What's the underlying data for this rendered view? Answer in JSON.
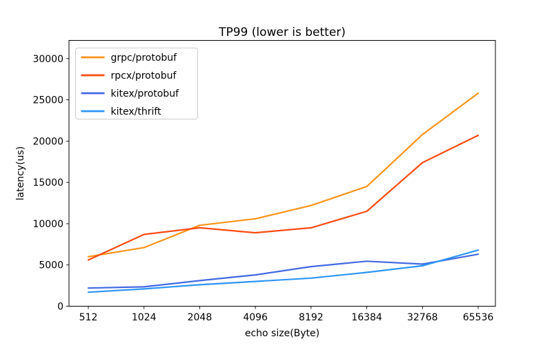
{
  "chart_data": {
    "type": "line",
    "title": "TP99 (lower is better)",
    "xlabel": "echo size(Byte)",
    "ylabel": "latency(us)",
    "categories": [
      "512",
      "1024",
      "2048",
      "4096",
      "8192",
      "16384",
      "32768",
      "65536"
    ],
    "series": [
      {
        "name": "grpc/protobuf",
        "color": "#FB9319",
        "values": [
          6000,
          7100,
          9800,
          10600,
          12200,
          14500,
          20800,
          25800
        ]
      },
      {
        "name": "rpcx/protobuf",
        "color": "#FA4B11",
        "values": [
          5600,
          8700,
          9500,
          8900,
          9500,
          11500,
          17400,
          20700
        ]
      },
      {
        "name": "kitex/protobuf",
        "color": "#4169E1",
        "values": [
          2200,
          2350,
          3100,
          3800,
          4800,
          5450,
          5100,
          6300
        ]
      },
      {
        "name": "kitex/thrift",
        "color": "#2E95F5",
        "values": [
          1700,
          2100,
          2600,
          3000,
          3400,
          4100,
          4900,
          6800
        ]
      }
    ],
    "yticks": [
      0,
      5000,
      10000,
      15000,
      20000,
      25000,
      30000
    ],
    "ylim": [
      0,
      32200
    ],
    "grid": false,
    "legend_position": "upper left",
    "axis_color": "#000000",
    "legend_border_color": "#cccccc",
    "legend_fill_color": "#ffffff"
  }
}
